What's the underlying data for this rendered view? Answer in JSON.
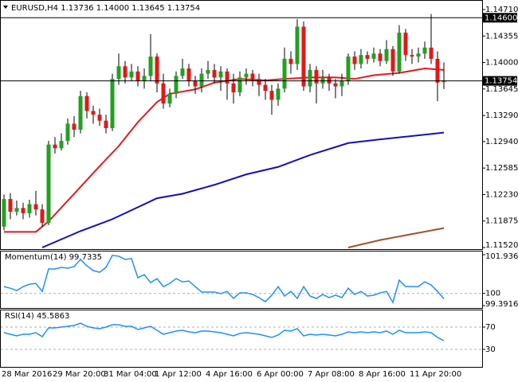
{
  "chart_data": [
    {
      "type": "candlestick",
      "title": "EURUSD,H4  1.13736 1.14000 1.13645 1.13754",
      "categories": [
        "28 Mar 2016",
        null,
        null,
        null,
        null,
        null,
        null,
        null,
        "29 Mar 20:00",
        null,
        null,
        null,
        null,
        null,
        null,
        null,
        "31 Mar 04:00",
        null,
        null,
        null,
        null,
        null,
        null,
        null,
        "1 Apr 12:00",
        null,
        null,
        null,
        null,
        null,
        null,
        null,
        "4 Apr 16:00",
        null,
        null,
        null,
        null,
        null,
        null,
        null,
        "6 Apr 00:00",
        null,
        null,
        null,
        null,
        null,
        null,
        null,
        "7 Apr 08:00",
        null,
        null,
        null,
        null,
        null,
        null,
        null,
        "8 Apr 16:00",
        null,
        null,
        null,
        null,
        null,
        null,
        null,
        "11 Apr 20:00",
        null,
        null,
        null,
        null,
        null
      ],
      "open": [
        1.118,
        1.1217,
        1.12,
        1.1205,
        1.1198,
        1.121,
        1.1203,
        1.1185,
        1.129,
        1.1285,
        1.1295,
        1.1318,
        1.131,
        1.1355,
        1.1335,
        1.133,
        1.1322,
        1.1312,
        1.1378,
        1.1395,
        1.138,
        1.1388,
        1.1375,
        1.1382,
        1.1408,
        1.1372,
        1.1345,
        1.1358,
        1.1382,
        1.1392,
        1.1375,
        1.1368,
        1.1385,
        1.139,
        1.138,
        1.1388,
        1.1372,
        1.136,
        1.138,
        1.1385,
        1.1378,
        1.137,
        1.1362,
        1.135,
        1.1365,
        1.1405,
        1.1398,
        1.1448,
        1.1368,
        1.139,
        1.1372,
        1.138,
        1.1372,
        1.1368,
        1.1375,
        1.1408,
        1.1398,
        1.141,
        1.1405,
        1.1412,
        1.1402,
        1.1418,
        1.1388,
        1.144,
        1.141,
        1.1408,
        1.1412,
        1.142,
        1.1405,
        1.13736
      ],
      "high": [
        1.1223,
        1.1225,
        1.1215,
        1.1212,
        1.1216,
        1.1228,
        1.121,
        1.1295,
        1.13,
        1.1305,
        1.1325,
        1.1328,
        1.1362,
        1.136,
        1.1342,
        1.1338,
        1.133,
        1.1385,
        1.1412,
        1.1402,
        1.1398,
        1.1395,
        1.1392,
        1.1438,
        1.1412,
        1.1385,
        1.1365,
        1.1388,
        1.1405,
        1.1398,
        1.1382,
        1.1392,
        1.1402,
        1.1398,
        1.1395,
        1.1392,
        1.1385,
        1.1388,
        1.1392,
        1.139,
        1.1385,
        1.1378,
        1.137,
        1.1372,
        1.142,
        1.1415,
        1.1458,
        1.1455,
        1.1398,
        1.1395,
        1.139,
        1.1385,
        1.1378,
        1.1385,
        1.1412,
        1.1415,
        1.1418,
        1.1415,
        1.142,
        1.1418,
        1.143,
        1.1422,
        1.145,
        1.1445,
        1.1418,
        1.142,
        1.1428,
        1.1465,
        1.1415,
        1.14
      ],
      "low": [
        1.1175,
        1.119,
        1.1195,
        1.119,
        1.1192,
        1.1195,
        1.118,
        1.1182,
        1.1278,
        1.1282,
        1.129,
        1.13,
        1.1305,
        1.1325,
        1.1318,
        1.1315,
        1.1305,
        1.1308,
        1.137,
        1.1372,
        1.1375,
        1.1368,
        1.1365,
        1.1375,
        1.136,
        1.1338,
        1.134,
        1.1352,
        1.1378,
        1.1368,
        1.1358,
        1.136,
        1.1378,
        1.1372,
        1.1362,
        1.135,
        1.1345,
        1.1355,
        1.137,
        1.1368,
        1.1355,
        1.135,
        1.133,
        1.1342,
        1.136,
        1.1385,
        1.139,
        1.1362,
        1.136,
        1.1345,
        1.1365,
        1.1362,
        1.1352,
        1.1355,
        1.137,
        1.139,
        1.1392,
        1.1398,
        1.14,
        1.1395,
        1.1398,
        1.1382,
        1.1385,
        1.1402,
        1.1398,
        1.14,
        1.1405,
        1.1398,
        1.1348,
        1.13645
      ],
      "close": [
        1.1217,
        1.12,
        1.1205,
        1.1198,
        1.121,
        1.1203,
        1.1185,
        1.129,
        1.1285,
        1.1295,
        1.1318,
        1.131,
        1.1355,
        1.1335,
        1.133,
        1.1322,
        1.1312,
        1.1378,
        1.1395,
        1.138,
        1.1388,
        1.1375,
        1.1382,
        1.1408,
        1.1372,
        1.1345,
        1.1358,
        1.1382,
        1.1392,
        1.1375,
        1.1368,
        1.1385,
        1.139,
        1.138,
        1.1388,
        1.1372,
        1.136,
        1.138,
        1.1385,
        1.1378,
        1.137,
        1.1362,
        1.135,
        1.1365,
        1.1405,
        1.1398,
        1.1448,
        1.1368,
        1.139,
        1.1372,
        1.138,
        1.1372,
        1.1368,
        1.1375,
        1.1408,
        1.1398,
        1.141,
        1.1405,
        1.1412,
        1.1402,
        1.1418,
        1.1388,
        1.144,
        1.141,
        1.1408,
        1.1412,
        1.142,
        1.1405,
        1.1373,
        1.13754
      ],
      "up_color": "#22a022",
      "down_color": "#e01818",
      "wick_color": "#000000",
      "overlays": [
        {
          "color": "#e31a1c",
          "x": [
            0,
            5,
            7,
            11,
            15,
            18,
            21,
            24,
            26,
            30,
            33,
            37,
            41,
            44,
            48,
            52,
            55,
            58,
            62,
            66,
            69
          ],
          "values": [
            1.1173,
            1.1173,
            1.1187,
            1.1224,
            1.1261,
            1.1288,
            1.132,
            1.1347,
            1.1358,
            1.1364,
            1.1373,
            1.1378,
            1.1376,
            1.1378,
            1.138,
            1.138,
            1.1378,
            1.1383,
            1.1386,
            1.1392,
            1.139
          ]
        },
        {
          "color": "#1010c0",
          "x": [
            6,
            12,
            17,
            24,
            28,
            33,
            38,
            43,
            48,
            54,
            59,
            69
          ],
          "values": [
            1.1152,
            1.1174,
            1.119,
            1.1218,
            1.1224,
            1.1236,
            1.125,
            1.126,
            1.1276,
            1.1292,
            1.1297,
            1.1306
          ]
        },
        {
          "color": "#a0522d",
          "x": [
            54,
            59,
            64,
            69
          ],
          "values": [
            1.1152,
            1.1162,
            1.117,
            1.1178
          ]
        }
      ],
      "hlines": [
        {
          "value": 1.146,
          "label": "1.14600"
        },
        {
          "value": 1.13754,
          "label": "1.13754"
        }
      ],
      "ylim": [
        1.1152,
        1.1471
      ],
      "yticks": [
        {
          "value": 1.1471,
          "label": "1.14710"
        },
        1.14355,
        {
          "value": 1.14,
          "label": "1.14000"
        },
        1.13645,
        {
          "value": 1.1329,
          "label": "1.13290"
        },
        {
          "value": 1.1294,
          "label": "1.12940"
        },
        1.12585,
        {
          "value": 1.1223,
          "label": "1.12230"
        },
        1.11875,
        {
          "value": 1.1152,
          "label": "1.11520"
        }
      ]
    },
    {
      "type": "line",
      "title": "Momentum(14) 99.7335",
      "color": "#1e90ff",
      "grid": "dashed",
      "values": [
        100.34,
        100.26,
        100.14,
        100.34,
        100.46,
        100.5,
        100.1,
        101.22,
        101.22,
        101.3,
        101.26,
        101.34,
        101.7,
        101.38,
        101.14,
        101.06,
        101.3,
        101.9,
        101.86,
        101.7,
        101.74,
        100.78,
        100.94,
        100.54,
        100.74,
        100.34,
        100.5,
        100.74,
        100.58,
        100.62,
        100.34,
        100.07,
        100.07,
        100.07,
        99.99,
        100.1,
        99.75,
        100.03,
        100.03,
        99.95,
        99.79,
        99.59,
        99.91,
        100.34,
        99.87,
        100.1,
        99.75,
        100.34,
        99.87,
        99.75,
        99.95,
        99.79,
        99.91,
        99.79,
        100.26,
        99.95,
        100.1,
        99.87,
        99.91,
        100.03,
        100.1,
        99.55,
        100.66,
        100.34,
        100.34,
        100.34,
        100.58,
        100.42,
        100.1,
        99.7335
      ],
      "ylim": [
        99.3916,
        101.9364
      ],
      "yticks": [
        101.9364,
        100,
        99.3916
      ]
    },
    {
      "type": "line",
      "title": "RSI(14) 45.5863",
      "color": "#1e90ff",
      "grid": "dashed",
      "values": [
        60.0,
        57.1,
        54.3,
        57.1,
        57.1,
        60.0,
        52.9,
        68.6,
        68.6,
        70.0,
        71.4,
        72.9,
        77.1,
        71.4,
        68.6,
        67.1,
        70.0,
        74.3,
        74.3,
        71.4,
        71.4,
        65.7,
        68.6,
        71.4,
        64.3,
        57.1,
        60.0,
        62.9,
        64.3,
        61.4,
        60.0,
        62.9,
        62.9,
        61.4,
        60.0,
        57.1,
        54.3,
        58.6,
        60.0,
        58.6,
        57.1,
        54.3,
        51.4,
        55.7,
        64.3,
        62.9,
        67.1,
        54.3,
        57.1,
        55.7,
        57.1,
        55.7,
        54.3,
        57.1,
        61.4,
        60.0,
        61.4,
        60.0,
        61.4,
        60.0,
        62.9,
        57.1,
        64.3,
        60.0,
        60.0,
        60.0,
        61.4,
        60.0,
        51.4,
        45.5863
      ],
      "ylim": [
        0,
        100
      ],
      "yticks": [
        70,
        30
      ]
    }
  ]
}
